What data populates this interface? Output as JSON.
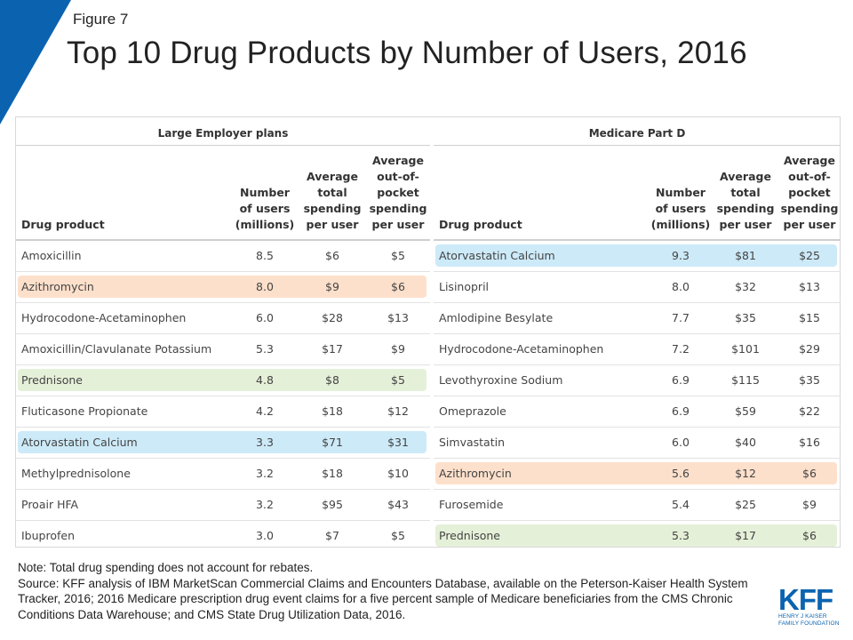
{
  "figure_label": "Figure 7",
  "title": "Top 10 Drug Products by Number of Users, 2016",
  "colors": {
    "brand_blue": "#0b63b0",
    "highlight_blue": "#cdeaf8",
    "highlight_orange": "#fde0cb",
    "highlight_green": "#e5f0d8"
  },
  "left": {
    "group_title": "Large Employer plans",
    "headers": [
      "Drug product",
      "Number of users (millions)",
      "Average total spending per user",
      "Average out-of-pocket spending per user"
    ],
    "rows": [
      {
        "drug": "Amoxicillin",
        "users": "8.5",
        "total": "$6",
        "oop": "$5",
        "highlight": ""
      },
      {
        "drug": "Azithromycin",
        "users": "8.0",
        "total": "$9",
        "oop": "$6",
        "highlight": "orange"
      },
      {
        "drug": "Hydrocodone-Acetaminophen",
        "users": "6.0",
        "total": "$28",
        "oop": "$13",
        "highlight": ""
      },
      {
        "drug": "Amoxicillin/Clavulanate Potassium",
        "users": "5.3",
        "total": "$17",
        "oop": "$9",
        "highlight": ""
      },
      {
        "drug": "Prednisone",
        "users": "4.8",
        "total": "$8",
        "oop": "$5",
        "highlight": "green"
      },
      {
        "drug": "Fluticasone Propionate",
        "users": "4.2",
        "total": "$18",
        "oop": "$12",
        "highlight": ""
      },
      {
        "drug": "Atorvastatin Calcium",
        "users": "3.3",
        "total": "$71",
        "oop": "$31",
        "highlight": "blue"
      },
      {
        "drug": "Methylprednisolone",
        "users": "3.2",
        "total": "$18",
        "oop": "$10",
        "highlight": ""
      },
      {
        "drug": "Proair HFA",
        "users": "3.2",
        "total": "$95",
        "oop": "$43",
        "highlight": ""
      },
      {
        "drug": "Ibuprofen",
        "users": "3.0",
        "total": "$7",
        "oop": "$5",
        "highlight": ""
      }
    ]
  },
  "right": {
    "group_title": "Medicare Part D",
    "headers": [
      "Drug product",
      "Number of users (millions)",
      "Average total spending per user",
      "Average out-of-pocket spending per user"
    ],
    "rows": [
      {
        "drug": "Atorvastatin Calcium",
        "users": "9.3",
        "total": "$81",
        "oop": "$25",
        "highlight": "blue"
      },
      {
        "drug": "Lisinopril",
        "users": "8.0",
        "total": "$32",
        "oop": "$13",
        "highlight": ""
      },
      {
        "drug": "Amlodipine Besylate",
        "users": "7.7",
        "total": "$35",
        "oop": "$15",
        "highlight": ""
      },
      {
        "drug": "Hydrocodone-Acetaminophen",
        "users": "7.2",
        "total": "$101",
        "oop": "$29",
        "highlight": ""
      },
      {
        "drug": "Levothyroxine Sodium",
        "users": "6.9",
        "total": "$115",
        "oop": "$35",
        "highlight": ""
      },
      {
        "drug": "Omeprazole",
        "users": "6.9",
        "total": "$59",
        "oop": "$22",
        "highlight": ""
      },
      {
        "drug": "Simvastatin",
        "users": "6.0",
        "total": "$40",
        "oop": "$16",
        "highlight": ""
      },
      {
        "drug": "Azithromycin",
        "users": "5.6",
        "total": "$12",
        "oop": "$6",
        "highlight": "orange"
      },
      {
        "drug": "Furosemide",
        "users": "5.4",
        "total": "$25",
        "oop": "$9",
        "highlight": ""
      },
      {
        "drug": "Prednisone",
        "users": "5.3",
        "total": "$17",
        "oop": "$6",
        "highlight": "green"
      }
    ]
  },
  "notes": {
    "note": "Note: Total drug spending does not account for rebates.",
    "source": "Source: KFF analysis of IBM MarketScan Commercial Claims and Encounters Database, available on the Peterson-Kaiser Health System Tracker, 2016; 2016 Medicare prescription drug event claims for a five percent sample of Medicare beneficiaries from the CMS Chronic Conditions Data Warehouse; and CMS State Drug Utilization Data, 2016."
  },
  "logo": {
    "mark": "KFF",
    "line1": "HENRY J KAISER",
    "line2": "FAMILY FOUNDATION",
    "icon": "kff-logo"
  }
}
